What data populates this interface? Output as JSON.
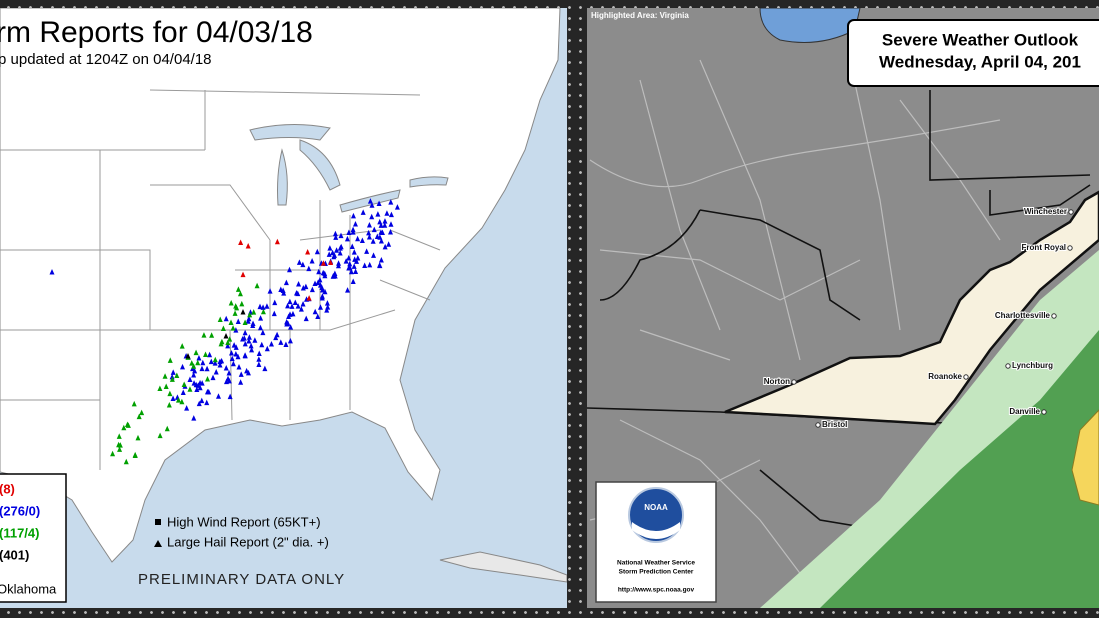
{
  "left_panel": {
    "title": "rm Reports for 04/03/18",
    "subtitle": "p updated at 1204Z on 04/04/18",
    "legend_counts": [
      {
        "text": "(8)",
        "color": "#e00000"
      },
      {
        "text": "(276/0)",
        "color": "#0000e0"
      },
      {
        "text": "(117/4)",
        "color": "#00a000"
      },
      {
        "text": "(401)",
        "color": "#000000"
      }
    ],
    "office": "Oklahoma",
    "symbol_legend": [
      "High Wind Report (65KT+)",
      "Large Hail Report (2\" dia. +)"
    ],
    "note": "PRELIMINARY DATA ONLY"
  },
  "right_panel": {
    "highlight": "Highlighted Area: Virginia",
    "title_lines": [
      "Severe Weather Outlook",
      "Wednesday, April 04, 201"
    ],
    "cities": [
      "Winchester",
      "Front Royal",
      "Charlottesville",
      "Lynchburg",
      "Roanoke",
      "Norton",
      "Bristol",
      "Danville"
    ],
    "logo": {
      "mark": "NOAA",
      "lines": [
        "National Weather Service",
        "Storm Prediction Center"
      ],
      "url": "http://www.spc.noaa.gov"
    }
  }
}
